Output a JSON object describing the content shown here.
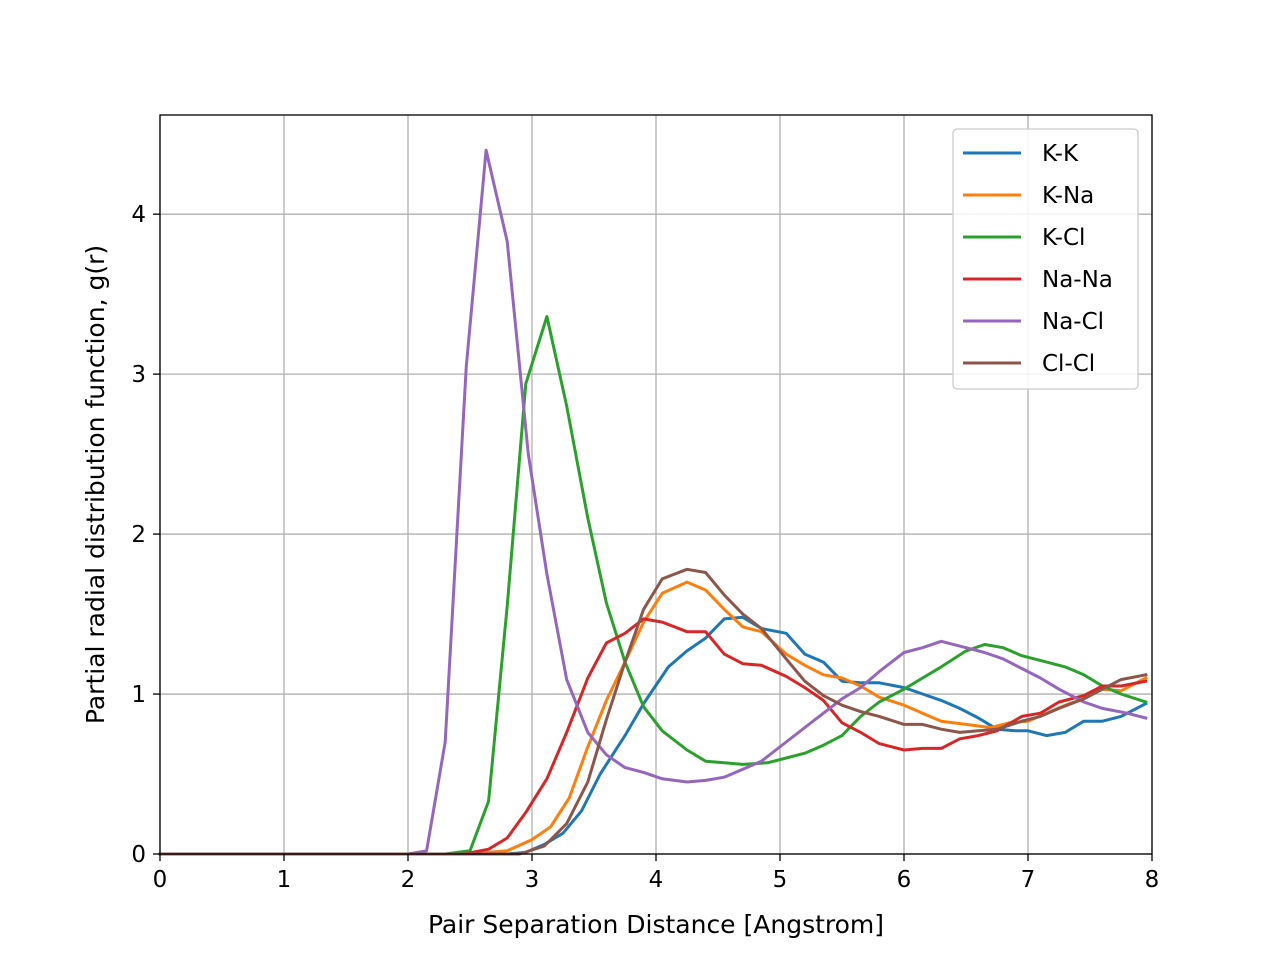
{
  "chart_data": {
    "type": "line",
    "title": "",
    "xlabel": "Pair Separation Distance [Angstrom]",
    "ylabel": "Partial radial distribution function, g(r)",
    "xlim": [
      0,
      8
    ],
    "ylim": [
      0,
      4.62
    ],
    "xticks": [
      0,
      1,
      2,
      3,
      4,
      5,
      6,
      7,
      8
    ],
    "yticks": [
      0,
      1,
      2,
      3,
      4
    ],
    "grid": true,
    "legend_position": "top-right",
    "series": [
      {
        "name": "K-K",
        "color": "#1f77b4",
        "points": [
          [
            0,
            0
          ],
          [
            2.4,
            0
          ],
          [
            2.8,
            0
          ],
          [
            2.95,
            0.01
          ],
          [
            3.1,
            0.06
          ],
          [
            3.25,
            0.13
          ],
          [
            3.4,
            0.27
          ],
          [
            3.55,
            0.5
          ],
          [
            3.75,
            0.74
          ],
          [
            3.9,
            0.94
          ],
          [
            4.1,
            1.17
          ],
          [
            4.25,
            1.27
          ],
          [
            4.4,
            1.35
          ],
          [
            4.55,
            1.47
          ],
          [
            4.7,
            1.48
          ],
          [
            4.85,
            1.41
          ],
          [
            5.05,
            1.38
          ],
          [
            5.2,
            1.25
          ],
          [
            5.35,
            1.2
          ],
          [
            5.5,
            1.08
          ],
          [
            5.65,
            1.07
          ],
          [
            5.8,
            1.07
          ],
          [
            6.0,
            1.04
          ],
          [
            6.15,
            1.0
          ],
          [
            6.3,
            0.96
          ],
          [
            6.45,
            0.91
          ],
          [
            6.6,
            0.85
          ],
          [
            6.75,
            0.78
          ],
          [
            6.9,
            0.77
          ],
          [
            7.0,
            0.77
          ],
          [
            7.15,
            0.74
          ],
          [
            7.3,
            0.76
          ],
          [
            7.45,
            0.83
          ],
          [
            7.6,
            0.83
          ],
          [
            7.75,
            0.86
          ],
          [
            7.95,
            0.94
          ]
        ]
      },
      {
        "name": "K-Na",
        "color": "#ff7f0e",
        "points": [
          [
            0,
            0
          ],
          [
            2.5,
            0
          ],
          [
            2.8,
            0.02
          ],
          [
            3.0,
            0.09
          ],
          [
            3.15,
            0.17
          ],
          [
            3.3,
            0.35
          ],
          [
            3.45,
            0.67
          ],
          [
            3.6,
            0.96
          ],
          [
            3.75,
            1.2
          ],
          [
            3.9,
            1.45
          ],
          [
            4.05,
            1.63
          ],
          [
            4.25,
            1.7
          ],
          [
            4.4,
            1.65
          ],
          [
            4.55,
            1.53
          ],
          [
            4.7,
            1.42
          ],
          [
            4.85,
            1.39
          ],
          [
            5.05,
            1.25
          ],
          [
            5.2,
            1.18
          ],
          [
            5.35,
            1.12
          ],
          [
            5.5,
            1.1
          ],
          [
            5.65,
            1.05
          ],
          [
            5.8,
            0.98
          ],
          [
            6.0,
            0.93
          ],
          [
            6.15,
            0.88
          ],
          [
            6.3,
            0.83
          ],
          [
            6.5,
            0.81
          ],
          [
            6.7,
            0.79
          ],
          [
            6.85,
            0.82
          ],
          [
            7.0,
            0.83
          ],
          [
            7.15,
            0.88
          ],
          [
            7.3,
            0.93
          ],
          [
            7.45,
            0.97
          ],
          [
            7.6,
            1.03
          ],
          [
            7.75,
            1.02
          ],
          [
            7.95,
            1.1
          ]
        ]
      },
      {
        "name": "K-Cl",
        "color": "#2ca02c",
        "points": [
          [
            0,
            0
          ],
          [
            2.3,
            0
          ],
          [
            2.5,
            0.02
          ],
          [
            2.65,
            0.33
          ],
          [
            2.8,
            1.55
          ],
          [
            2.95,
            2.94
          ],
          [
            3.12,
            3.36
          ],
          [
            3.28,
            2.8
          ],
          [
            3.45,
            2.1
          ],
          [
            3.6,
            1.57
          ],
          [
            3.75,
            1.2
          ],
          [
            3.9,
            0.92
          ],
          [
            4.05,
            0.77
          ],
          [
            4.25,
            0.65
          ],
          [
            4.4,
            0.58
          ],
          [
            4.55,
            0.57
          ],
          [
            4.7,
            0.56
          ],
          [
            4.9,
            0.57
          ],
          [
            5.05,
            0.6
          ],
          [
            5.2,
            0.63
          ],
          [
            5.35,
            0.68
          ],
          [
            5.5,
            0.74
          ],
          [
            5.65,
            0.86
          ],
          [
            5.8,
            0.95
          ],
          [
            6.0,
            1.03
          ],
          [
            6.15,
            1.1
          ],
          [
            6.3,
            1.17
          ],
          [
            6.5,
            1.27
          ],
          [
            6.65,
            1.31
          ],
          [
            6.8,
            1.29
          ],
          [
            6.95,
            1.24
          ],
          [
            7.15,
            1.2
          ],
          [
            7.3,
            1.17
          ],
          [
            7.45,
            1.12
          ],
          [
            7.6,
            1.05
          ],
          [
            7.75,
            1.0
          ],
          [
            7.95,
            0.95
          ]
        ]
      },
      {
        "name": "Na-Na",
        "color": "#d62728",
        "points": [
          [
            0,
            0
          ],
          [
            2.45,
            0
          ],
          [
            2.65,
            0.03
          ],
          [
            2.8,
            0.1
          ],
          [
            2.95,
            0.26
          ],
          [
            3.12,
            0.47
          ],
          [
            3.28,
            0.76
          ],
          [
            3.45,
            1.1
          ],
          [
            3.6,
            1.32
          ],
          [
            3.75,
            1.38
          ],
          [
            3.9,
            1.47
          ],
          [
            4.05,
            1.45
          ],
          [
            4.25,
            1.39
          ],
          [
            4.4,
            1.39
          ],
          [
            4.55,
            1.25
          ],
          [
            4.7,
            1.19
          ],
          [
            4.85,
            1.18
          ],
          [
            5.05,
            1.11
          ],
          [
            5.2,
            1.04
          ],
          [
            5.35,
            0.96
          ],
          [
            5.5,
            0.82
          ],
          [
            5.65,
            0.76
          ],
          [
            5.8,
            0.69
          ],
          [
            6.0,
            0.65
          ],
          [
            6.15,
            0.66
          ],
          [
            6.3,
            0.66
          ],
          [
            6.45,
            0.72
          ],
          [
            6.6,
            0.74
          ],
          [
            6.75,
            0.77
          ],
          [
            6.95,
            0.86
          ],
          [
            7.1,
            0.88
          ],
          [
            7.25,
            0.95
          ],
          [
            7.45,
            0.99
          ],
          [
            7.6,
            1.05
          ],
          [
            7.75,
            1.05
          ],
          [
            7.95,
            1.08
          ]
        ]
      },
      {
        "name": "Na-Cl",
        "color": "#9467bd",
        "points": [
          [
            0,
            0
          ],
          [
            2.0,
            0
          ],
          [
            2.15,
            0.02
          ],
          [
            2.3,
            0.7
          ],
          [
            2.47,
            3.05
          ],
          [
            2.63,
            4.4
          ],
          [
            2.8,
            3.83
          ],
          [
            2.97,
            2.5
          ],
          [
            3.12,
            1.75
          ],
          [
            3.28,
            1.09
          ],
          [
            3.45,
            0.76
          ],
          [
            3.6,
            0.62
          ],
          [
            3.75,
            0.54
          ],
          [
            3.9,
            0.51
          ],
          [
            4.05,
            0.47
          ],
          [
            4.25,
            0.45
          ],
          [
            4.4,
            0.46
          ],
          [
            4.55,
            0.48
          ],
          [
            4.7,
            0.53
          ],
          [
            4.85,
            0.58
          ],
          [
            5.05,
            0.7
          ],
          [
            5.2,
            0.79
          ],
          [
            5.35,
            0.88
          ],
          [
            5.5,
            0.97
          ],
          [
            5.65,
            1.04
          ],
          [
            5.8,
            1.14
          ],
          [
            6.0,
            1.26
          ],
          [
            6.15,
            1.29
          ],
          [
            6.3,
            1.33
          ],
          [
            6.5,
            1.29
          ],
          [
            6.65,
            1.26
          ],
          [
            6.8,
            1.22
          ],
          [
            6.95,
            1.16
          ],
          [
            7.1,
            1.1
          ],
          [
            7.25,
            1.03
          ],
          [
            7.45,
            0.95
          ],
          [
            7.6,
            0.91
          ],
          [
            7.8,
            0.88
          ],
          [
            7.95,
            0.85
          ]
        ]
      },
      {
        "name": "Cl-Cl",
        "color": "#8c564b",
        "points": [
          [
            0,
            0
          ],
          [
            2.9,
            0
          ],
          [
            3.1,
            0.05
          ],
          [
            3.28,
            0.19
          ],
          [
            3.45,
            0.45
          ],
          [
            3.6,
            0.84
          ],
          [
            3.75,
            1.2
          ],
          [
            3.9,
            1.53
          ],
          [
            4.05,
            1.72
          ],
          [
            4.25,
            1.78
          ],
          [
            4.4,
            1.76
          ],
          [
            4.55,
            1.62
          ],
          [
            4.7,
            1.5
          ],
          [
            4.85,
            1.41
          ],
          [
            5.05,
            1.22
          ],
          [
            5.2,
            1.08
          ],
          [
            5.35,
            0.99
          ],
          [
            5.5,
            0.93
          ],
          [
            5.65,
            0.89
          ],
          [
            5.8,
            0.86
          ],
          [
            6.0,
            0.81
          ],
          [
            6.15,
            0.81
          ],
          [
            6.3,
            0.78
          ],
          [
            6.45,
            0.76
          ],
          [
            6.6,
            0.77
          ],
          [
            6.75,
            0.78
          ],
          [
            6.95,
            0.83
          ],
          [
            7.1,
            0.86
          ],
          [
            7.25,
            0.91
          ],
          [
            7.45,
            0.97
          ],
          [
            7.6,
            1.03
          ],
          [
            7.75,
            1.09
          ],
          [
            7.95,
            1.12
          ]
        ]
      }
    ]
  }
}
